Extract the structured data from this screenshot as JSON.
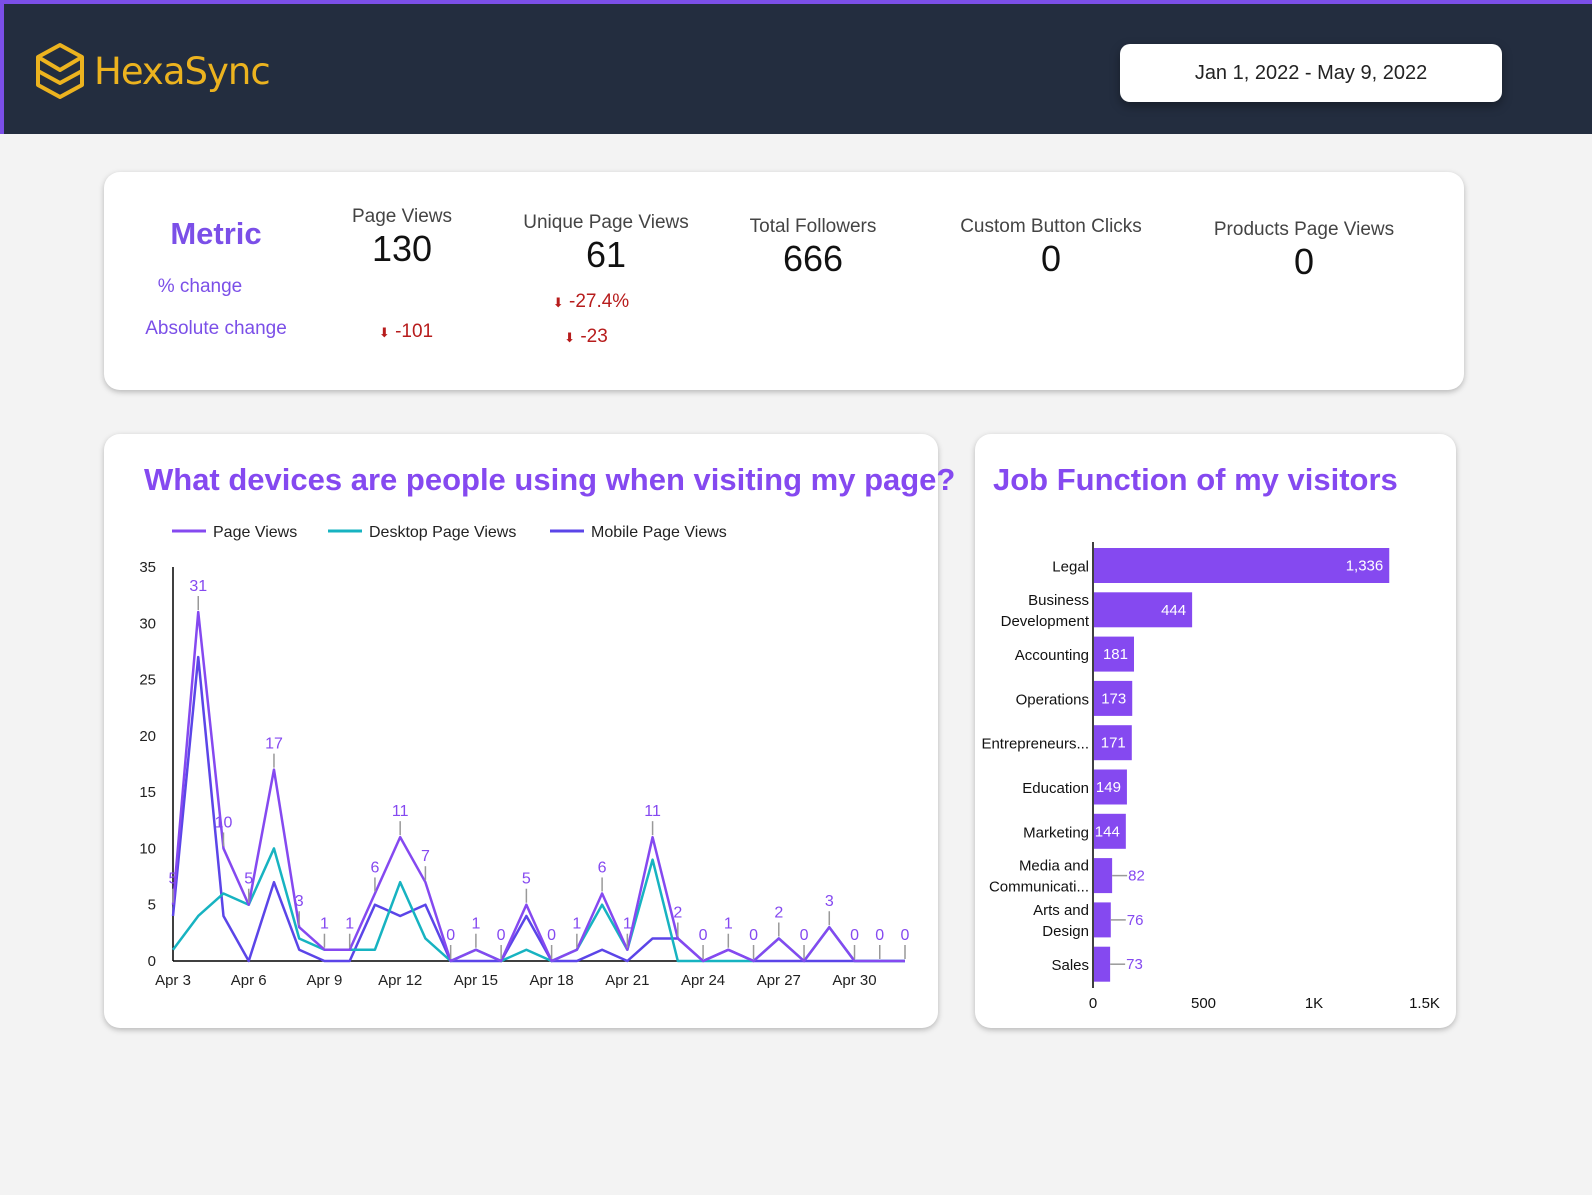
{
  "header": {
    "brand": "HexaSync",
    "date_range": "Jan 1, 2022 - May 9, 2022"
  },
  "colors": {
    "header_bg": "#232d3f",
    "accent": "#7b4fe8",
    "brand": "#ecb31f",
    "decrease": "#b71c1c",
    "page_views": "#8549f0",
    "desktop": "#17b3c1",
    "mobile": "#5b45e8"
  },
  "scorecard": {
    "row_title": "Metric",
    "pct_label": "% change",
    "abs_label": "Absolute change",
    "metrics": [
      {
        "label": "Page Views",
        "value": "130",
        "abs_change": "-101"
      },
      {
        "label": "Unique Page Views",
        "value": "61",
        "pct_change": "-27.4%",
        "abs_change": "-23"
      },
      {
        "label": "Total Followers",
        "value": "666"
      },
      {
        "label": "Custom Button Clicks",
        "value": "0"
      },
      {
        "label": "Products Page Views",
        "value": "0"
      }
    ]
  },
  "chart_data": [
    {
      "type": "line",
      "title": "What devices are people using when visiting my page?",
      "x": [
        "Apr 3",
        "Apr 4",
        "Apr 5",
        "Apr 6",
        "Apr 7",
        "Apr 8",
        "Apr 9",
        "Apr 10",
        "Apr 11",
        "Apr 12",
        "Apr 13",
        "Apr 14",
        "Apr 15",
        "Apr 16",
        "Apr 17",
        "Apr 18",
        "Apr 19",
        "Apr 20",
        "Apr 21",
        "Apr 22",
        "Apr 23",
        "Apr 24",
        "Apr 25",
        "Apr 26",
        "Apr 27",
        "Apr 28",
        "Apr 29",
        "Apr 30",
        "May 1",
        "May 2"
      ],
      "xticks": [
        "Apr 3",
        "Apr 6",
        "Apr 9",
        "Apr 12",
        "Apr 15",
        "Apr 18",
        "Apr 21",
        "Apr 24",
        "Apr 27",
        "Apr 30"
      ],
      "yticks": [
        0,
        5,
        10,
        15,
        20,
        25,
        30,
        35
      ],
      "ylim": [
        0,
        35
      ],
      "legend": "top",
      "series": [
        {
          "name": "Page Views",
          "color": "#8549f0",
          "labeled": true,
          "values": [
            5,
            31,
            10,
            5,
            17,
            3,
            1,
            1,
            6,
            11,
            7,
            0,
            1,
            0,
            5,
            0,
            1,
            6,
            1,
            11,
            2,
            0,
            1,
            0,
            2,
            0,
            3,
            0,
            0,
            0
          ]
        },
        {
          "name": "Desktop Page Views",
          "color": "#17b3c1",
          "values": [
            1,
            4,
            6,
            5,
            10,
            2,
            1,
            1,
            1,
            7,
            2,
            0,
            1,
            0,
            1,
            0,
            1,
            5,
            1,
            9,
            0,
            0,
            0,
            0,
            2,
            0,
            3,
            0,
            0,
            0
          ]
        },
        {
          "name": "Mobile Page Views",
          "color": "#5b45e8",
          "values": [
            4,
            27,
            4,
            0,
            7,
            1,
            0,
            0,
            5,
            4,
            5,
            0,
            0,
            0,
            4,
            0,
            0,
            1,
            0,
            2,
            2,
            0,
            1,
            0,
            0,
            0,
            0,
            0,
            0,
            0
          ]
        }
      ]
    },
    {
      "type": "bar",
      "orientation": "horizontal",
      "title": "Job Function of my visitors",
      "categories": [
        "Legal",
        "Business Development",
        "Accounting",
        "Operations",
        "Entrepreneurs...",
        "Education",
        "Marketing",
        "Media and Communicati...",
        "Arts and Design",
        "Sales"
      ],
      "values": [
        1336,
        444,
        181,
        173,
        171,
        149,
        144,
        82,
        76,
        73
      ],
      "value_labels": [
        "1,336",
        "444",
        "181",
        "173",
        "171",
        "149",
        "144",
        "82",
        "76",
        "73"
      ],
      "xticks": [
        "0",
        "500",
        "1K",
        "1.5K"
      ],
      "xlim": [
        0,
        1500
      ],
      "color": "#8549f0"
    }
  ]
}
